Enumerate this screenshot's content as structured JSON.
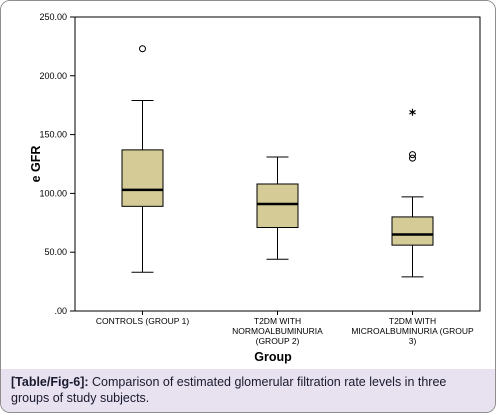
{
  "caption": {
    "label": "[Table/Fig-6]:",
    "text": "Comparison of estimated glomerular filtration rate levels in three groups of study subjects."
  },
  "colors": {
    "box_fill": "#d4cb96",
    "caption_bg": "#e7e1f0",
    "outline": "#000000"
  },
  "chart_data": {
    "type": "boxplot",
    "title": "",
    "xlabel": "Group",
    "ylabel": "e GFR",
    "ylim": [
      0,
      250
    ],
    "yticks": [
      0,
      50,
      100,
      150,
      200,
      250
    ],
    "ytick_labels": [
      ".00",
      "50.00",
      "100.00",
      "150.00",
      "200.00",
      "250.00"
    ],
    "grid": false,
    "categories": [
      {
        "label_lines": [
          "CONTROLS (GROUP 1)"
        ]
      },
      {
        "label_lines": [
          "T2DM WITH",
          "NORMOALBUMINURIA",
          "(GROUP 2)"
        ]
      },
      {
        "label_lines": [
          "T2DM WITH",
          "MICROALBUMINURIA (GROUP",
          "3)"
        ]
      }
    ],
    "boxes": [
      {
        "min": 33,
        "q1": 89,
        "median": 103,
        "q3": 137,
        "max": 179,
        "outliers": [
          223
        ],
        "extremes": []
      },
      {
        "min": 44,
        "q1": 71,
        "median": 91,
        "q3": 108,
        "max": 131,
        "outliers": [],
        "extremes": []
      },
      {
        "min": 29,
        "q1": 56,
        "median": 65,
        "q3": 80,
        "max": 97,
        "outliers": [
          130,
          133
        ],
        "extremes": [
          169
        ]
      }
    ]
  }
}
